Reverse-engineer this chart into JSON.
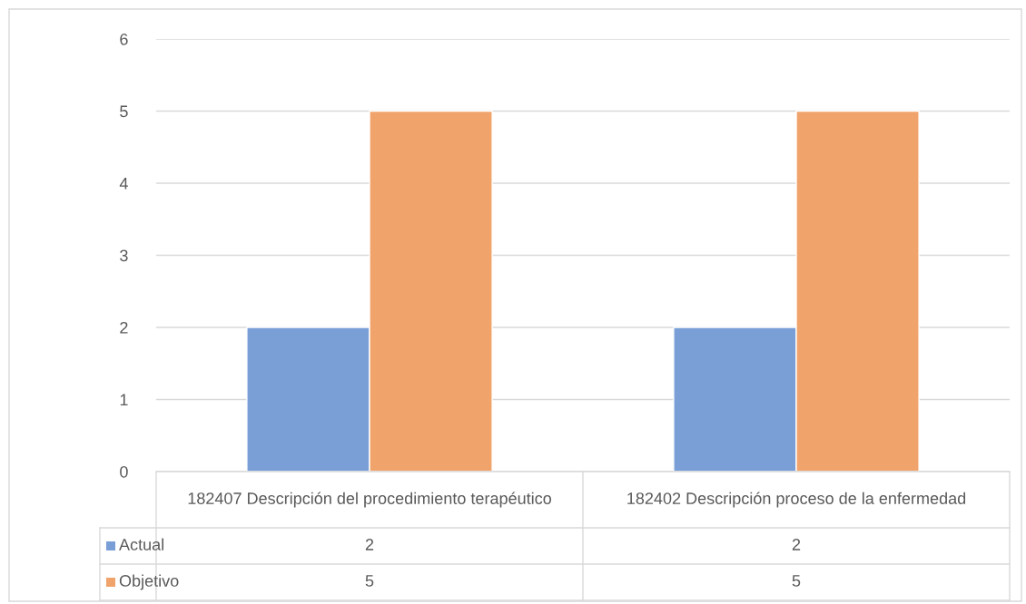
{
  "chart_data": {
    "type": "bar",
    "categories": [
      "182407 Descripción del procedimiento terapéutico",
      "182402 Descripción proceso de la enfermedad"
    ],
    "series": [
      {
        "name": "Actual",
        "color": "#7a9fd6",
        "values": [
          2,
          2
        ]
      },
      {
        "name": "Objetivo",
        "color": "#f0a46c",
        "values": [
          5,
          5
        ]
      }
    ],
    "ylim": [
      0,
      6
    ],
    "yticks": [
      0,
      1,
      2,
      3,
      4,
      5,
      6
    ],
    "grid": "y",
    "legend": "bottom",
    "data_labels": true
  }
}
